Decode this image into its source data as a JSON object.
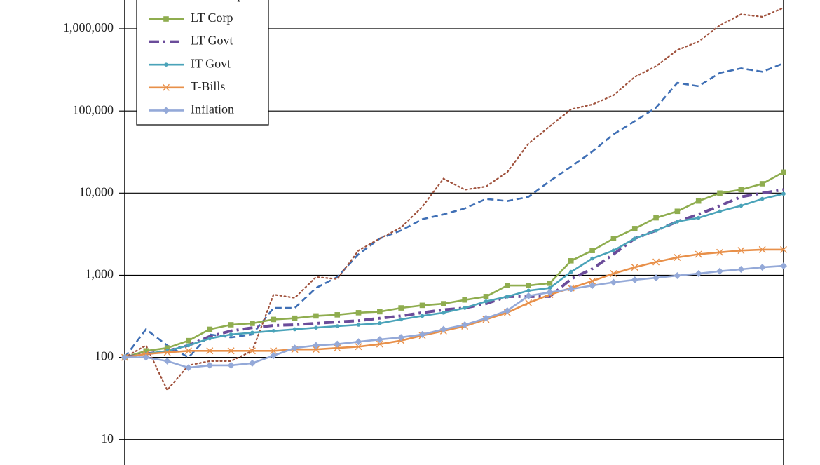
{
  "chart_data": {
    "type": "line",
    "log_scale": true,
    "grid": true,
    "ylim": [
      4.9,
      2240000
    ],
    "yticks": [
      10,
      100,
      {
        "value": 1000,
        "label": "1,000"
      },
      {
        "value": 10000,
        "label": "10,000"
      },
      {
        "value": 100000,
        "label": "100,000"
      },
      {
        "value": 1000000,
        "label": "1,000,000"
      }
    ],
    "series": [
      {
        "color": "#3f6fb5",
        "dash": "dashed",
        "marker": "none",
        "values": [
          100,
          220,
          140,
          100,
          190,
          175,
          190,
          400,
          400,
          700,
          950,
          1800,
          2800,
          3500,
          4800,
          5500,
          6500,
          8500,
          8000,
          9000,
          14000,
          21000,
          32000,
          52000,
          75000,
          110000,
          220000,
          200000,
          290000,
          330000,
          300000,
          380000
        ]
      },
      {
        "name": "Small Caps",
        "color": "#a0523d",
        "dash": "dotted",
        "marker": "none",
        "values": [
          100,
          140,
          40,
          80,
          90,
          90,
          120,
          580,
          530,
          950,
          900,
          2000,
          2800,
          3800,
          6800,
          15000,
          11000,
          12000,
          18000,
          40000,
          65000,
          105000,
          120000,
          155000,
          260000,
          350000,
          550000,
          700000,
          1100000,
          1500000,
          1400000,
          1800000
        ]
      },
      {
        "name": "LT Corp",
        "color": "#8fad4f",
        "dash": "solid",
        "marker": "square",
        "values": [
          100,
          120,
          130,
          160,
          220,
          250,
          260,
          290,
          300,
          320,
          330,
          350,
          360,
          400,
          430,
          450,
          500,
          550,
          750,
          750,
          800,
          1500,
          2000,
          2800,
          3700,
          5000,
          6000,
          8000,
          10000,
          11000,
          13000,
          18000
        ]
      },
      {
        "name": "LT Govt",
        "color": "#6b4c9a",
        "dash": "dashdot",
        "marker": "none",
        "values": [
          100,
          110,
          120,
          140,
          180,
          210,
          230,
          245,
          250,
          260,
          270,
          280,
          300,
          320,
          350,
          380,
          400,
          450,
          550,
          550,
          550,
          900,
          1200,
          1800,
          2800,
          3500,
          4500,
          5500,
          7000,
          9000,
          10000,
          11000
        ]
      },
      {
        "name": "IT Govt",
        "color": "#4aa3b9",
        "dash": "solid",
        "marker": "circle",
        "values": [
          100,
          110,
          120,
          140,
          170,
          190,
          200,
          210,
          220,
          230,
          240,
          250,
          260,
          290,
          320,
          350,
          400,
          480,
          550,
          650,
          700,
          1100,
          1600,
          2000,
          2800,
          3500,
          4500,
          5000,
          6000,
          7000,
          8500,
          9800
        ]
      },
      {
        "name": "T-Bills",
        "color": "#e8904a",
        "dash": "solid",
        "marker": "cross",
        "values": [
          100,
          110,
          115,
          120,
          120,
          120,
          120,
          120,
          125,
          125,
          130,
          135,
          145,
          160,
          185,
          210,
          240,
          290,
          350,
          460,
          580,
          700,
          850,
          1050,
          1250,
          1450,
          1650,
          1800,
          1900,
          2000,
          2050,
          2050
        ]
      },
      {
        "name": "Inflation",
        "color": "#94a9d8",
        "dash": "solid",
        "marker": "diamond",
        "values": [
          100,
          100,
          90,
          75,
          80,
          80,
          85,
          105,
          130,
          140,
          145,
          155,
          165,
          175,
          190,
          220,
          250,
          300,
          370,
          560,
          620,
          680,
          750,
          820,
          880,
          930,
          990,
          1050,
          1120,
          1180,
          1250,
          1300
        ]
      }
    ]
  }
}
